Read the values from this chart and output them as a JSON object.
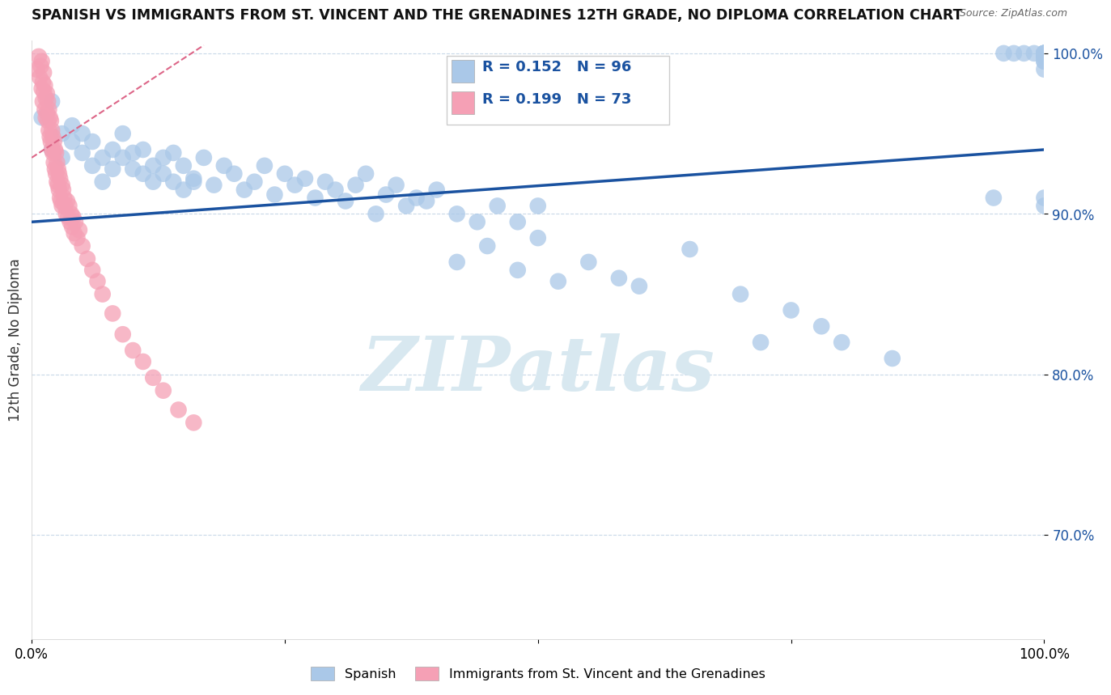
{
  "title": "SPANISH VS IMMIGRANTS FROM ST. VINCENT AND THE GRENADINES 12TH GRADE, NO DIPLOMA CORRELATION CHART",
  "source": "Source: ZipAtlas.com",
  "ylabel": "12th Grade, No Diploma",
  "xlim": [
    0.0,
    1.0
  ],
  "ylim": [
    0.635,
    1.008
  ],
  "yticks": [
    0.7,
    0.8,
    0.9,
    1.0
  ],
  "ytick_labels": [
    "70.0%",
    "80.0%",
    "90.0%",
    "100.0%"
  ],
  "xtick_labels": [
    "0.0%",
    "100.0%"
  ],
  "xtick_vals": [
    0.0,
    1.0
  ],
  "legend_r_blue": "R = 0.152",
  "legend_n_blue": "N = 96",
  "legend_r_pink": "R = 0.199",
  "legend_n_pink": "N = 73",
  "blue_color": "#aac8e8",
  "pink_color": "#f5a0b5",
  "trend_blue_color": "#1a52a0",
  "trend_pink_color": "#dd6688",
  "watermark_text": "ZIPatlas",
  "watermark_color": "#d8e8f0",
  "legend_label_blue": "Spanish",
  "legend_label_pink": "Immigrants from St. Vincent and the Grenadines",
  "background_color": "#ffffff",
  "blue_trend_x0": 0.0,
  "blue_trend_x1": 1.0,
  "blue_trend_y0": 0.895,
  "blue_trend_y1": 0.94,
  "pink_trend_x0": 0.0,
  "pink_trend_x1": 0.17,
  "pink_trend_y0": 0.935,
  "pink_trend_y1": 1.005
}
